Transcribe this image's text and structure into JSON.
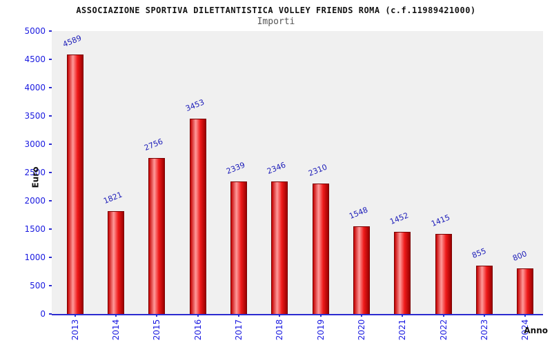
{
  "header": {
    "title": "ASSOCIAZIONE SPORTIVA DILETTANTISTICA VOLLEY FRIENDS ROMA (c.f.11989421000)",
    "subtitle": "Importi"
  },
  "chart_data": {
    "type": "bar",
    "title": "ASSOCIAZIONE SPORTIVA DILETTANTISTICA VOLLEY FRIENDS ROMA (c.f.11989421000)",
    "subtitle": "Importi",
    "categories": [
      "2013",
      "2014",
      "2015",
      "2016",
      "2017",
      "2018",
      "2019",
      "2020",
      "2021",
      "2022",
      "2023",
      "2024"
    ],
    "values": [
      4589,
      1821,
      2756,
      3453,
      2339,
      2346,
      2310,
      1548,
      1452,
      1415,
      855,
      800
    ],
    "xlabel": "Anno",
    "ylabel": "Euro",
    "ylim": [
      0,
      5000
    ],
    "yticks": [
      0,
      500,
      1000,
      1500,
      2000,
      2500,
      3000,
      3500,
      4000,
      4500,
      5000
    ],
    "grid": false,
    "legend": "none",
    "bar_color": "#e01a1a",
    "bar_edge_color": "#7a0000",
    "value_label_color": "#1a1ab8",
    "tick_label_color": "#1a1ae0",
    "plot_background": "#f0f0f0"
  }
}
